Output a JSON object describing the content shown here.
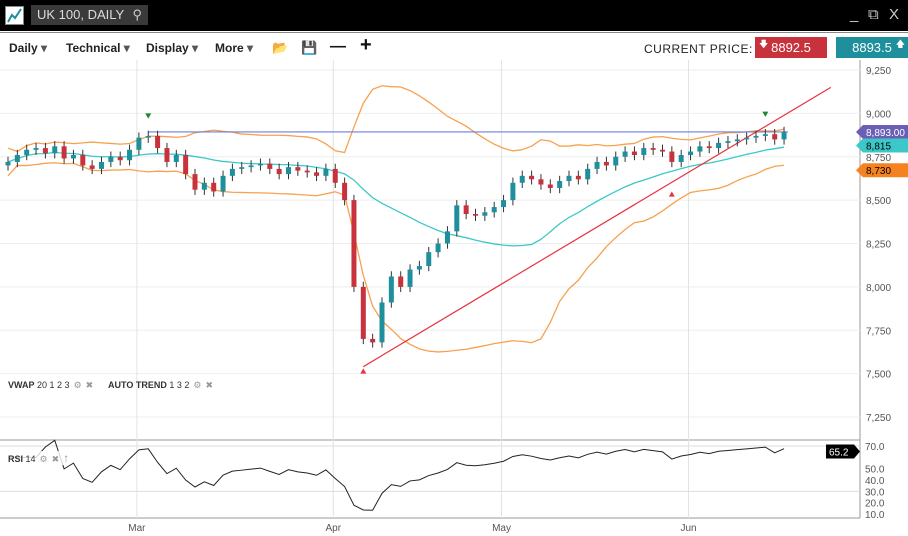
{
  "window": {
    "symbol": "UK 100, DAILY",
    "minimize": "_",
    "popout": "⧉",
    "close": "X"
  },
  "toolbar": {
    "menus": [
      "Daily",
      "Technical",
      "Display",
      "More"
    ],
    "current_price_label": "CURRENT PRICE:",
    "sell_price": "8892.5",
    "buy_price": "8893.5"
  },
  "colors": {
    "up": "#1e8f9c",
    "down": "#c8323c",
    "bands": "#f7a14e",
    "middle": "#3cc8c8",
    "resistance": "#6b7fe0",
    "trend": "#e8323c",
    "sell": "#c8323c",
    "buy": "#1e8f9c"
  },
  "indicators": {
    "vwap": "VWAP",
    "vwap_params": "20 1 2 3",
    "autotrend": "AUTO TREND",
    "autotrend_params": "1 3 2",
    "rsi": "RSI",
    "rsi_params": "14"
  },
  "chart_data": {
    "type": "candlestick",
    "y_ticks": [
      "9,250",
      "9,000",
      "8,750",
      "8,500",
      "8,250",
      "8,000",
      "7,750",
      "7,500",
      "7,250"
    ],
    "y_tick_values": [
      9250,
      9000,
      8750,
      8500,
      8250,
      8000,
      7750,
      7500,
      7250
    ],
    "ylim": [
      7250,
      9250
    ],
    "x_labels": [
      "Mar",
      "Apr",
      "May",
      "Jun"
    ],
    "x_label_index": [
      14,
      35,
      53,
      73
    ],
    "closes": [
      8720,
      8760,
      8790,
      8800,
      8770,
      8810,
      8740,
      8760,
      8700,
      8680,
      8720,
      8750,
      8730,
      8790,
      8860,
      8870,
      8800,
      8720,
      8760,
      8650,
      8560,
      8600,
      8550,
      8640,
      8680,
      8690,
      8700,
      8710,
      8680,
      8650,
      8690,
      8670,
      8660,
      8640,
      8680,
      8600,
      8500,
      8000,
      7700,
      7680,
      7910,
      8060,
      8000,
      8100,
      8120,
      8200,
      8250,
      8320,
      8470,
      8420,
      8410,
      8430,
      8460,
      8500,
      8600,
      8640,
      8620,
      8590,
      8570,
      8610,
      8640,
      8620,
      8680,
      8720,
      8700,
      8750,
      8780,
      8760,
      8800,
      8790,
      8780,
      8720,
      8760,
      8780,
      8810,
      8800,
      8830,
      8840,
      8850,
      8860,
      8870,
      8880,
      8850,
      8893
    ],
    "resistance_level": 8893,
    "trend_line": {
      "from": [
        38,
        7540
      ],
      "to": [
        88,
        9150
      ]
    },
    "markers_down": [
      15,
      81
    ],
    "markers_up": [
      38,
      71
    ],
    "labels": {
      "last": "8,893.00",
      "middle": "8,815",
      "lower": "8,730"
    },
    "rsi": {
      "ticks": [
        "70.0",
        "50.0",
        "40.0",
        "30.0",
        "20.0",
        "10.0"
      ],
      "tick_values": [
        70,
        50,
        40,
        30,
        20,
        10
      ],
      "last": "65.2"
    }
  }
}
